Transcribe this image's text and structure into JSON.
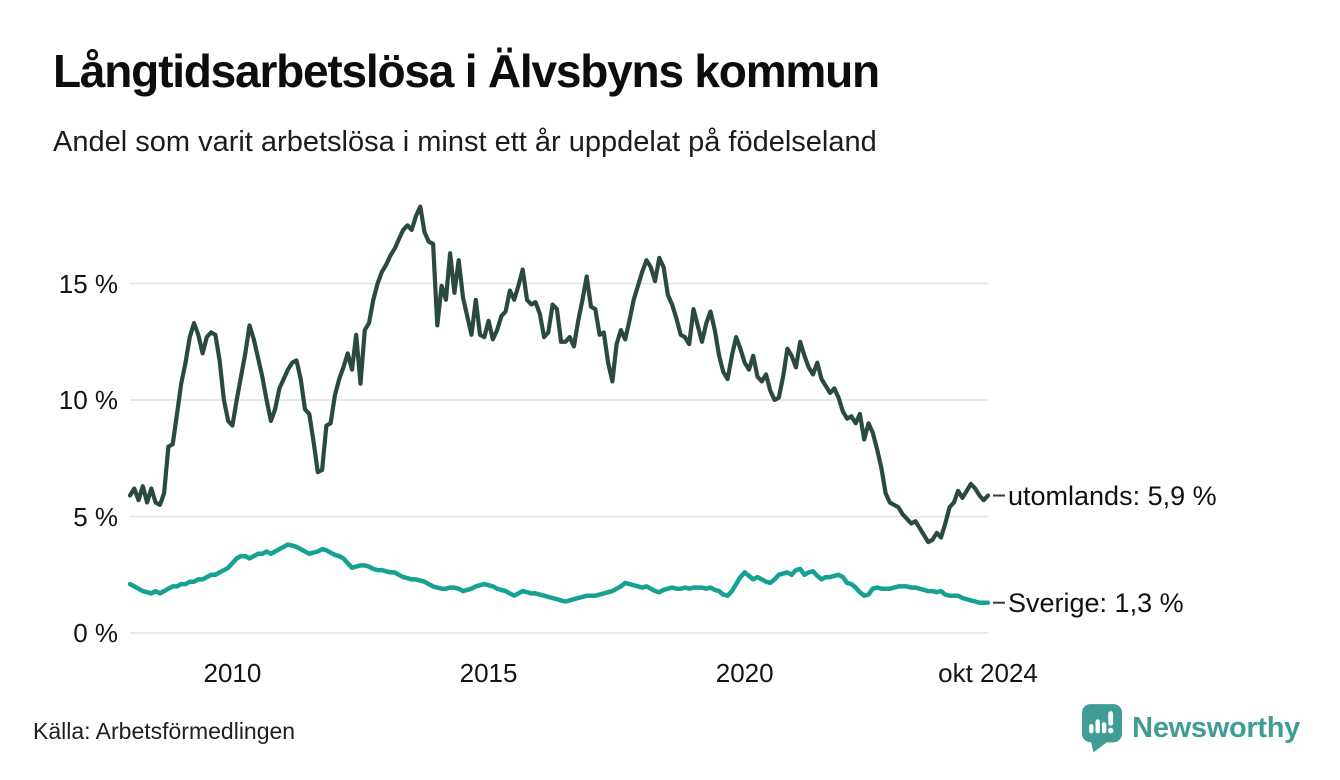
{
  "header": {
    "title": "Långtidsarbetslösa i Älvsbyns kommun",
    "subtitle": "Andel som varit arbetslösa i minst ett år uppdelat på födelseland"
  },
  "footer": {
    "source": "Källa: Arbetsförmedlingen",
    "brand": "Newsworthy",
    "brand_color": "#3f9d96",
    "logo_icon": "newsworthy-speech-bubble-bar-chart-icon"
  },
  "colors": {
    "background": "#ffffff",
    "grid": "#e8e8e8",
    "axis_text": "#141414",
    "label_dash": "#3a3a3a",
    "series_utomlands": "#2a4a41",
    "series_sverige": "#16a194"
  },
  "chart_data": {
    "type": "line",
    "title": "Långtidsarbetslösa i Älvsbyns kommun",
    "subtitle": "Andel som varit arbetslösa i minst ett år uppdelat på födelseland",
    "x_unit": "month",
    "x_start_year": 2008,
    "x_start_month": 1,
    "x_end_label": "okt 2024",
    "ylim": [
      0,
      18.5
    ],
    "grid": "horizontal",
    "y_ticks": [
      {
        "value": 0,
        "label": "0 %"
      },
      {
        "value": 5,
        "label": "5 %"
      },
      {
        "value": 10,
        "label": "10 %"
      },
      {
        "value": 15,
        "label": "15 %"
      }
    ],
    "x_ticks": [
      {
        "year_value": 2010.0,
        "label": "2010"
      },
      {
        "year_value": 2015.0,
        "label": "2015"
      },
      {
        "year_value": 2020.0,
        "label": "2020"
      },
      {
        "year_value": 2024.75,
        "label": "okt 2024"
      }
    ],
    "series": [
      {
        "name": "utomlands",
        "end_label": "utomlands: 5,9 %",
        "last_value": 5.9,
        "color": "#2a4a41",
        "values": [
          5.9,
          6.2,
          5.7,
          6.3,
          5.6,
          6.2,
          5.6,
          5.5,
          6.0,
          8.0,
          8.1,
          9.4,
          10.7,
          11.6,
          12.7,
          13.3,
          12.8,
          12.0,
          12.7,
          12.9,
          12.8,
          11.7,
          10.0,
          9.1,
          8.9,
          10.0,
          11.0,
          12.0,
          13.2,
          12.6,
          11.8,
          11.0,
          10.0,
          9.1,
          9.6,
          10.5,
          10.9,
          11.3,
          11.6,
          11.7,
          10.9,
          9.6,
          9.4,
          8.2,
          6.9,
          7.0,
          8.9,
          9.0,
          10.2,
          10.9,
          11.4,
          12.0,
          11.3,
          12.8,
          10.7,
          13.0,
          13.3,
          14.3,
          15.0,
          15.5,
          15.8,
          16.2,
          16.5,
          16.9,
          17.3,
          17.5,
          17.3,
          17.9,
          18.3,
          17.2,
          16.8,
          16.7,
          13.2,
          14.9,
          14.3,
          16.3,
          14.6,
          16.0,
          14.4,
          13.6,
          12.8,
          14.3,
          12.8,
          12.7,
          13.4,
          12.6,
          13.0,
          13.6,
          13.8,
          14.7,
          14.3,
          14.9,
          15.6,
          14.3,
          14.1,
          14.2,
          13.7,
          12.7,
          12.9,
          14.1,
          13.9,
          12.5,
          12.5,
          12.7,
          12.3,
          13.4,
          14.3,
          15.3,
          14.0,
          13.9,
          12.8,
          12.9,
          11.6,
          10.8,
          12.4,
          13.0,
          12.6,
          13.4,
          14.3,
          14.9,
          15.5,
          16.0,
          15.7,
          15.1,
          16.1,
          15.7,
          14.5,
          14.1,
          13.5,
          12.8,
          12.7,
          12.4,
          13.9,
          13.2,
          12.5,
          13.3,
          13.8,
          13.0,
          11.9,
          11.2,
          10.9,
          11.9,
          12.7,
          12.2,
          11.6,
          11.3,
          11.9,
          11.0,
          10.8,
          11.1,
          10.4,
          10.0,
          10.1,
          11.0,
          12.2,
          11.9,
          11.4,
          12.5,
          11.9,
          11.4,
          11.1,
          11.6,
          10.9,
          10.6,
          10.3,
          10.5,
          10.1,
          9.5,
          9.2,
          9.3,
          9.0,
          9.4,
          8.3,
          9.0,
          8.6,
          7.9,
          7.1,
          6.0,
          5.6,
          5.5,
          5.4,
          5.1,
          4.9,
          4.7,
          4.8,
          4.5,
          4.2,
          3.9,
          4.0,
          4.3,
          4.1,
          4.7,
          5.4,
          5.6,
          6.1,
          5.8,
          6.1,
          6.4,
          6.2,
          5.9,
          5.7,
          5.9
        ]
      },
      {
        "name": "Sverige",
        "end_label": "Sverige: 1,3 %",
        "last_value": 1.3,
        "color": "#16a194",
        "values": [
          2.1,
          2.0,
          1.9,
          1.8,
          1.75,
          1.7,
          1.8,
          1.7,
          1.8,
          1.9,
          2.0,
          2.0,
          2.1,
          2.1,
          2.2,
          2.2,
          2.3,
          2.3,
          2.4,
          2.5,
          2.5,
          2.6,
          2.7,
          2.8,
          3.0,
          3.2,
          3.3,
          3.3,
          3.2,
          3.3,
          3.4,
          3.4,
          3.5,
          3.4,
          3.5,
          3.6,
          3.7,
          3.8,
          3.75,
          3.7,
          3.6,
          3.5,
          3.4,
          3.45,
          3.5,
          3.6,
          3.55,
          3.45,
          3.35,
          3.3,
          3.2,
          3.0,
          2.8,
          2.85,
          2.9,
          2.9,
          2.85,
          2.75,
          2.7,
          2.7,
          2.65,
          2.6,
          2.6,
          2.5,
          2.4,
          2.35,
          2.3,
          2.3,
          2.25,
          2.2,
          2.1,
          2.0,
          1.95,
          1.9,
          1.9,
          1.95,
          1.95,
          1.9,
          1.8,
          1.85,
          1.9,
          2.0,
          2.05,
          2.1,
          2.05,
          2.0,
          1.9,
          1.85,
          1.8,
          1.7,
          1.6,
          1.7,
          1.8,
          1.75,
          1.7,
          1.7,
          1.65,
          1.6,
          1.55,
          1.5,
          1.45,
          1.4,
          1.35,
          1.4,
          1.45,
          1.5,
          1.55,
          1.6,
          1.6,
          1.6,
          1.65,
          1.7,
          1.75,
          1.8,
          1.9,
          2.0,
          2.15,
          2.1,
          2.05,
          2.0,
          1.95,
          2.0,
          1.9,
          1.8,
          1.75,
          1.85,
          1.9,
          1.95,
          1.9,
          1.9,
          1.95,
          1.9,
          1.95,
          1.95,
          1.95,
          1.9,
          1.95,
          1.85,
          1.8,
          1.65,
          1.6,
          1.8,
          2.1,
          2.4,
          2.6,
          2.45,
          2.3,
          2.4,
          2.3,
          2.2,
          2.15,
          2.3,
          2.5,
          2.55,
          2.6,
          2.5,
          2.7,
          2.75,
          2.5,
          2.6,
          2.65,
          2.45,
          2.3,
          2.4,
          2.4,
          2.45,
          2.5,
          2.4,
          2.15,
          2.1,
          1.95,
          1.75,
          1.6,
          1.65,
          1.9,
          1.95,
          1.9,
          1.9,
          1.9,
          1.95,
          2.0,
          2.0,
          2.0,
          1.95,
          1.95,
          1.9,
          1.85,
          1.8,
          1.8,
          1.75,
          1.8,
          1.65,
          1.6,
          1.6,
          1.6,
          1.5,
          1.45,
          1.4,
          1.35,
          1.3,
          1.3,
          1.3
        ]
      }
    ]
  }
}
